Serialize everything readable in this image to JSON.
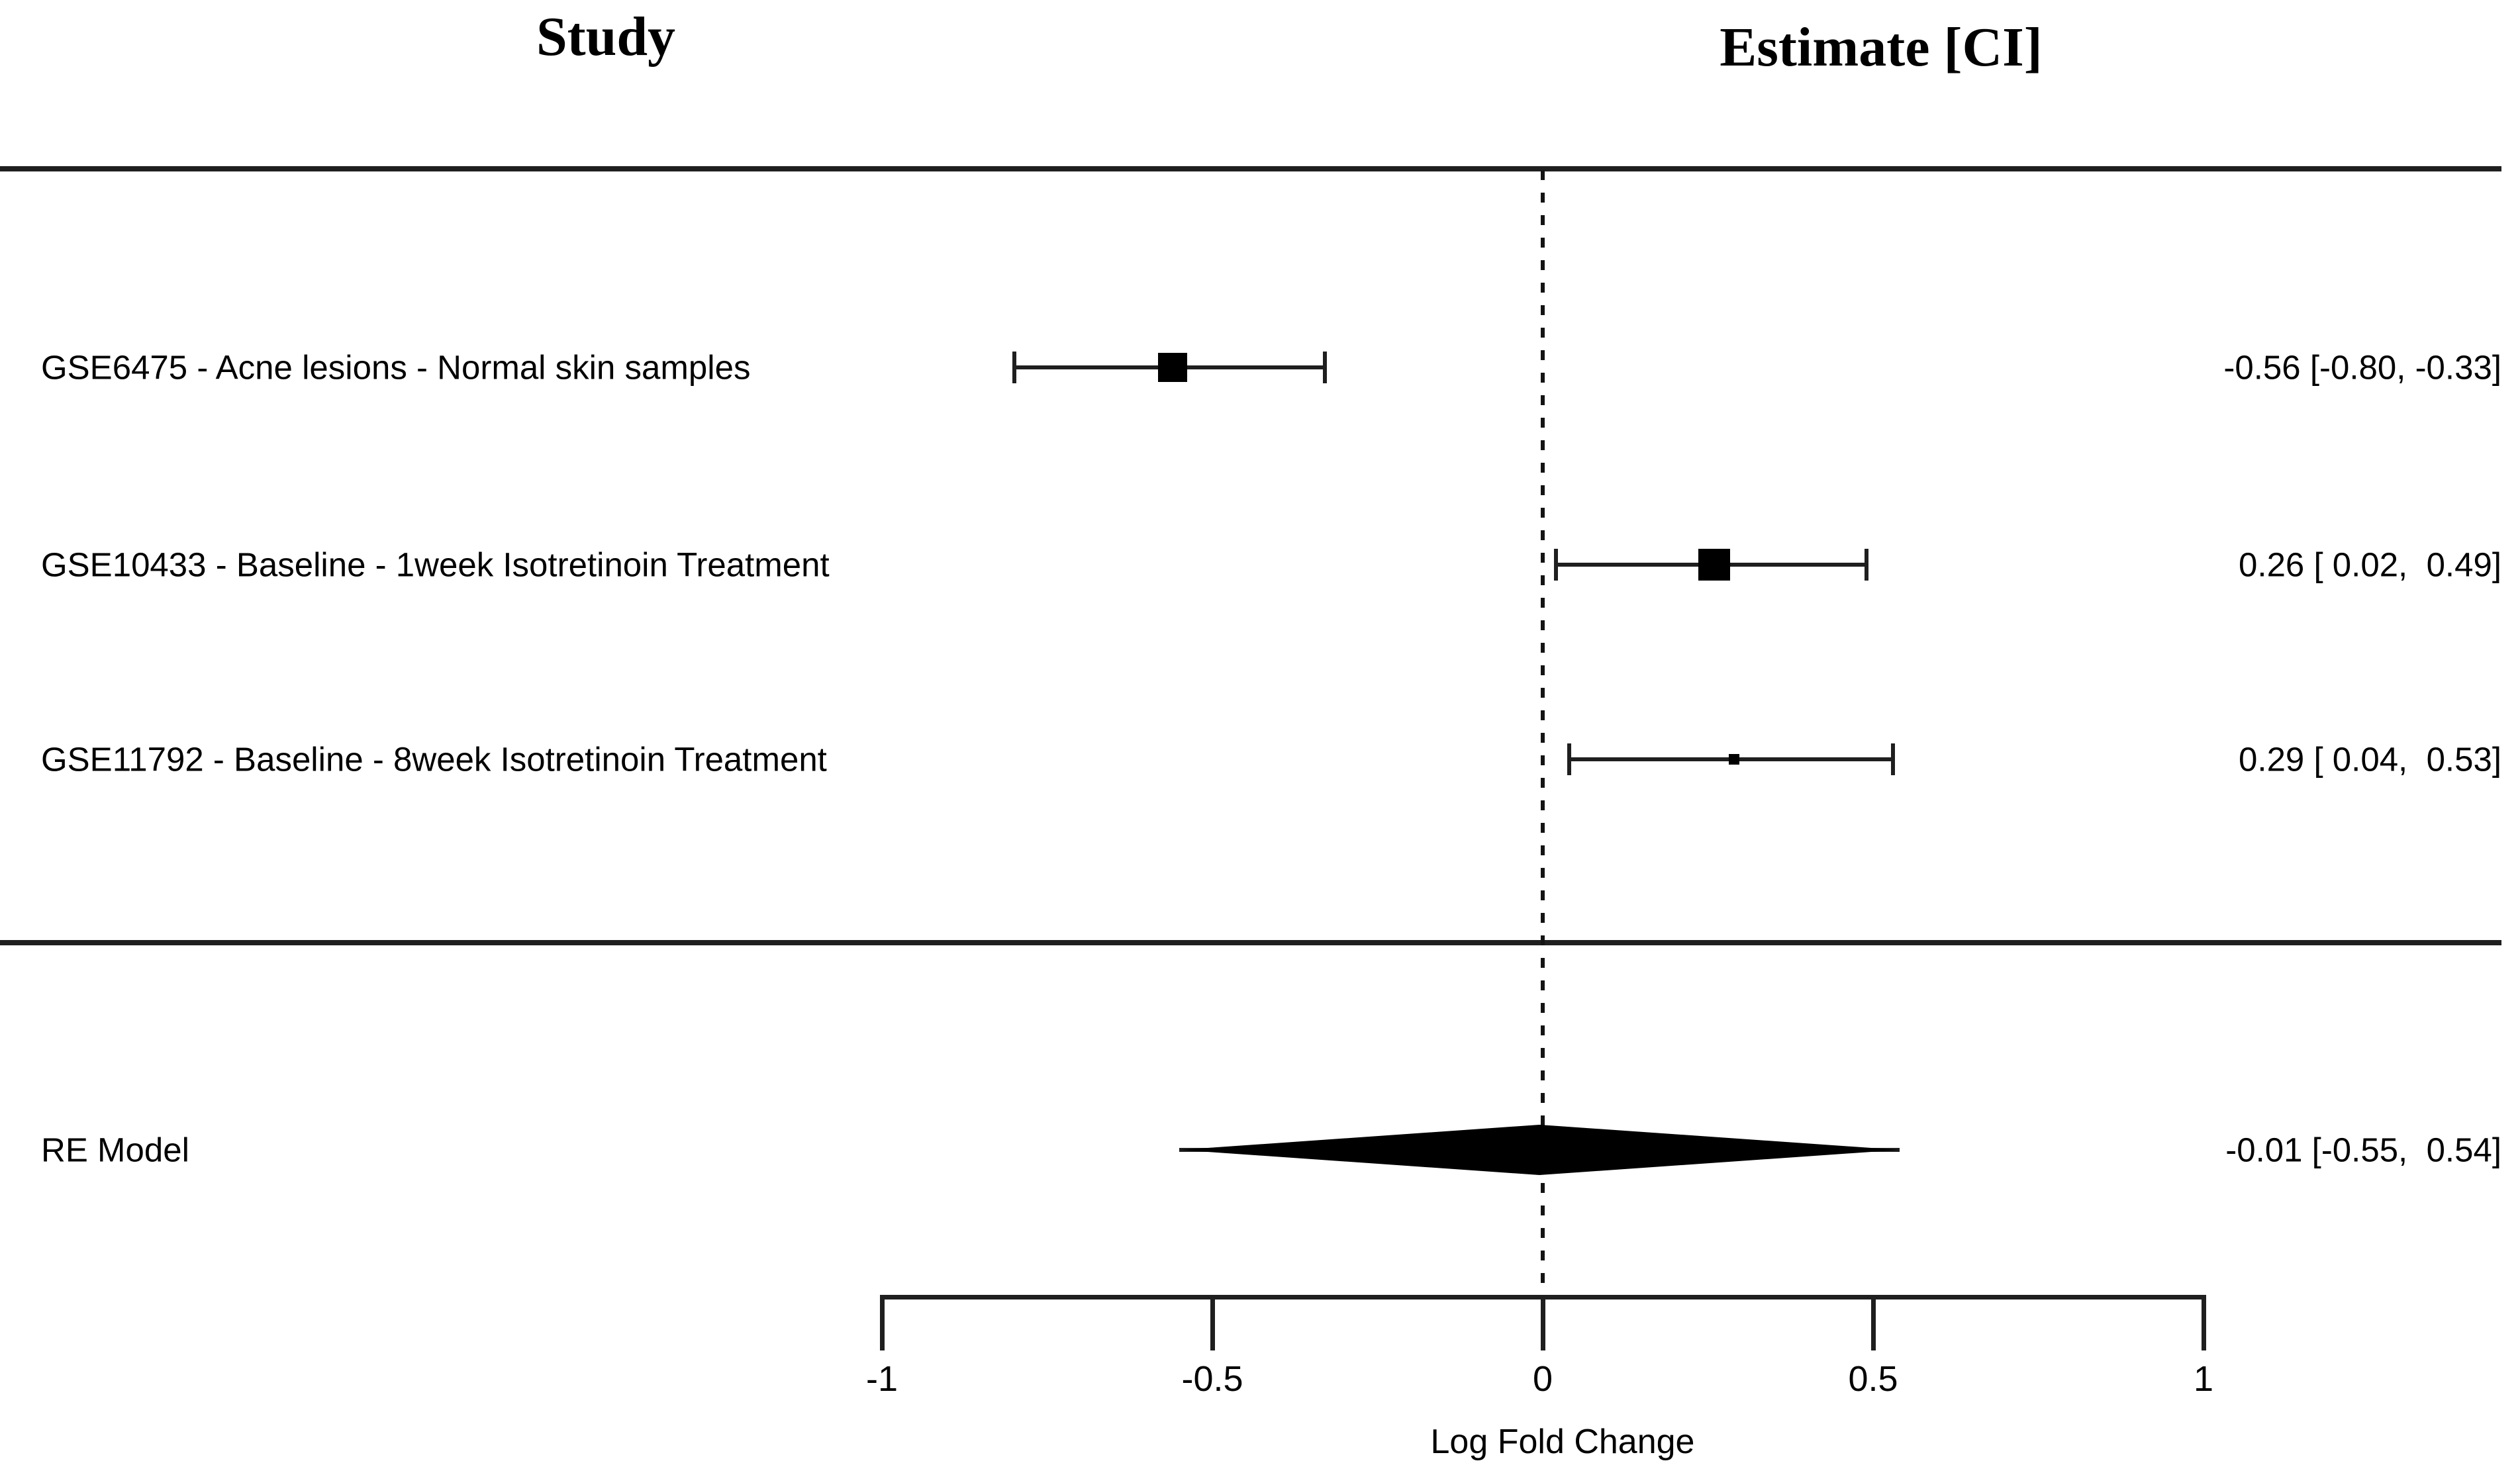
{
  "chart_data": {
    "type": "forest",
    "columns": {
      "study": "Study",
      "estimate": "Estimate [CI]"
    },
    "xlabel": "Log Fold Change",
    "axis": {
      "range": [
        -1,
        1
      ],
      "zero_line": 0,
      "ticks": [
        {
          "value": -1,
          "label": "-1"
        },
        {
          "value": -0.5,
          "label": "-0.5"
        },
        {
          "value": 0,
          "label": "0"
        },
        {
          "value": 0.5,
          "label": "0.5"
        },
        {
          "value": 1,
          "label": "1"
        }
      ]
    },
    "studies": [
      {
        "label": "GSE6475 - Acne lesions - Normal skin samples",
        "estimate": -0.56,
        "ci_lower": -0.8,
        "ci_upper": -0.33,
        "estimate_label": "-0.56 [-0.80, -0.33]",
        "marker_size": 44
      },
      {
        "label": "GSE10433 - Baseline - 1week Isotretinoin Treatment",
        "estimate": 0.26,
        "ci_lower": 0.02,
        "ci_upper": 0.49,
        "estimate_label": "0.26 [ 0.02,  0.49]",
        "marker_size": 48
      },
      {
        "label": "GSE11792 - Baseline - 8week Isotretinoin Treatment",
        "estimate": 0.29,
        "ci_lower": 0.04,
        "ci_upper": 0.53,
        "estimate_label": "0.29 [ 0.04,  0.53]",
        "marker_size": 16
      }
    ],
    "summary": {
      "label": "RE Model",
      "estimate": -0.01,
      "ci_lower": -0.55,
      "ci_upper": 0.54,
      "estimate_label": "-0.01 [-0.55,  0.54]"
    }
  }
}
